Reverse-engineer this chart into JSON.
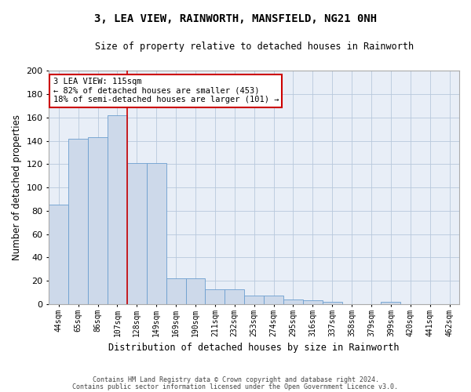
{
  "title": "3, LEA VIEW, RAINWORTH, MANSFIELD, NG21 0NH",
  "subtitle": "Size of property relative to detached houses in Rainworth",
  "xlabel": "Distribution of detached houses by size in Rainworth",
  "ylabel": "Number of detached properties",
  "categories": [
    "44sqm",
    "65sqm",
    "86sqm",
    "107sqm",
    "128sqm",
    "149sqm",
    "169sqm",
    "190sqm",
    "211sqm",
    "232sqm",
    "253sqm",
    "274sqm",
    "295sqm",
    "316sqm",
    "337sqm",
    "358sqm",
    "379sqm",
    "399sqm",
    "420sqm",
    "441sqm",
    "462sqm"
  ],
  "values": [
    85,
    142,
    143,
    162,
    121,
    121,
    22,
    22,
    13,
    13,
    7,
    7,
    4,
    3,
    2,
    0,
    0,
    2,
    0,
    0,
    0
  ],
  "bar_color": "#cdd9ea",
  "bar_edge_color": "#6b9ecf",
  "vline_x": 3.5,
  "vline_color": "#cc0000",
  "annotation_text": "3 LEA VIEW: 115sqm\n← 82% of detached houses are smaller (453)\n18% of semi-detached houses are larger (101) →",
  "annotation_box_color": "#ffffff",
  "annotation_box_edge_color": "#cc0000",
  "footer_line1": "Contains HM Land Registry data © Crown copyright and database right 2024.",
  "footer_line2": "Contains public sector information licensed under the Open Government Licence v3.0.",
  "background_color": "#ffffff",
  "plot_bg_color": "#e8eef7",
  "grid_color": "#b8c8dc",
  "ylim": [
    0,
    200
  ],
  "yticks": [
    0,
    20,
    40,
    60,
    80,
    100,
    120,
    140,
    160,
    180,
    200
  ]
}
